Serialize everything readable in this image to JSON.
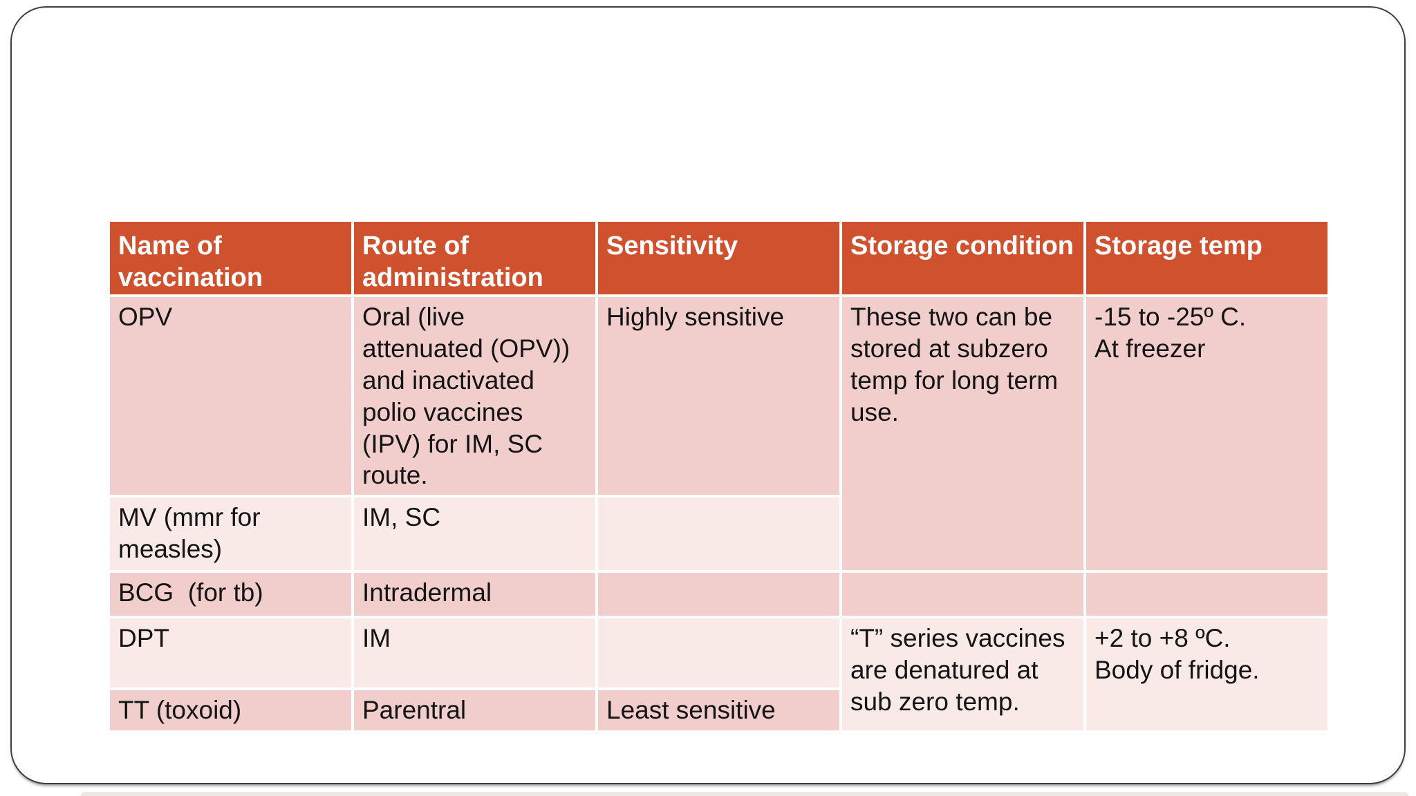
{
  "slide": {
    "type": "presentation-slide",
    "colors": {
      "header_bg": "#D0512E",
      "header_text": "#FFFFFF",
      "row_dark": "#F1CECB",
      "row_light": "#F9EAE8",
      "body_text": "#141414",
      "slide_border": "#3F3F3F"
    }
  },
  "colors": {
    "header_bg": "#D0512E",
    "header_text": "#FFFFFF",
    "row_dark": "#F1CECB",
    "row_light": "#F9EAE8",
    "body_text": "#141414",
    "slide_border": "#3F3F3F"
  },
  "table": {
    "headers": [
      "Name of vaccination",
      "Route of administration",
      "Sensitivity",
      "Storage condition",
      "Storage temp"
    ],
    "cells": {
      "opv_name": "OPV",
      "opv_route": "Oral (live attenuated (OPV)) and inactivated polio vaccines (IPV) for IM, SC route.",
      "opv_sensitivity": "Highly sensitive",
      "storage_condition_top": "These two can be stored at subzero temp for long term use.",
      "storage_temp_top": "-15 to -25º C.\nAt freezer",
      "mv_name": "MV (mmr for measles)",
      "mv_route": "IM, SC",
      "bcg_name": "BCG  (for tb)",
      "bcg_route": "Intradermal",
      "dpt_name": "DPT",
      "dpt_route": "IM",
      "storage_condition_bottom": "“T” series vaccines are denatured at sub zero temp.",
      "storage_temp_bottom": "+2 to +8 ºC.\nBody of fridge.",
      "tt_name": "TT (toxoid)",
      "tt_route": "Parentral",
      "tt_sensitivity": "Least sensitive"
    }
  }
}
